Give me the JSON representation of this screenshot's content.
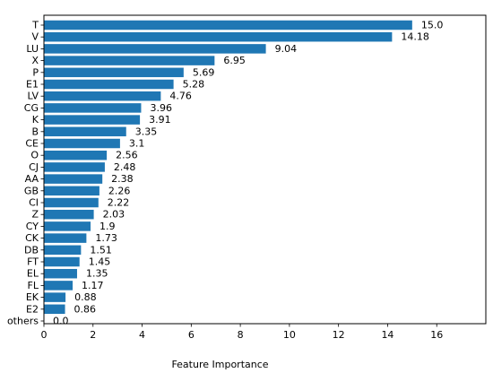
{
  "chart_data": {
    "type": "bar",
    "orientation": "horizontal",
    "categories": [
      "T",
      "V",
      "LU",
      "X",
      "P",
      "E1",
      "LV",
      "CG",
      "K",
      "B",
      "CE",
      "O",
      "CJ",
      "AA",
      "GB",
      "CI",
      "Z",
      "CY",
      "CK",
      "DB",
      "FT",
      "EL",
      "FL",
      "EK",
      "E2",
      "others"
    ],
    "values": [
      15.0,
      14.18,
      9.04,
      6.95,
      5.69,
      5.28,
      4.76,
      3.96,
      3.91,
      3.35,
      3.1,
      2.56,
      2.48,
      2.38,
      2.26,
      2.22,
      2.03,
      1.9,
      1.73,
      1.51,
      1.45,
      1.35,
      1.17,
      0.88,
      0.86,
      0.0
    ],
    "value_labels": [
      "15.0",
      "14.18",
      "9.04",
      "6.95",
      "5.69",
      "5.28",
      "4.76",
      "3.96",
      "3.91",
      "3.35",
      "3.1",
      "2.56",
      "2.48",
      "2.38",
      "2.26",
      "2.22",
      "2.03",
      "1.9",
      "1.73",
      "1.51",
      "1.45",
      "1.35",
      "1.17",
      "0.88",
      "0.86",
      "0.0"
    ],
    "xlabel": "Feature Importance",
    "ylabel": "",
    "xlim": [
      0,
      18
    ],
    "xticks": [
      0,
      2,
      4,
      6,
      8,
      10,
      12,
      14,
      16
    ],
    "grid": false,
    "bar_color": "#1f77b4"
  }
}
